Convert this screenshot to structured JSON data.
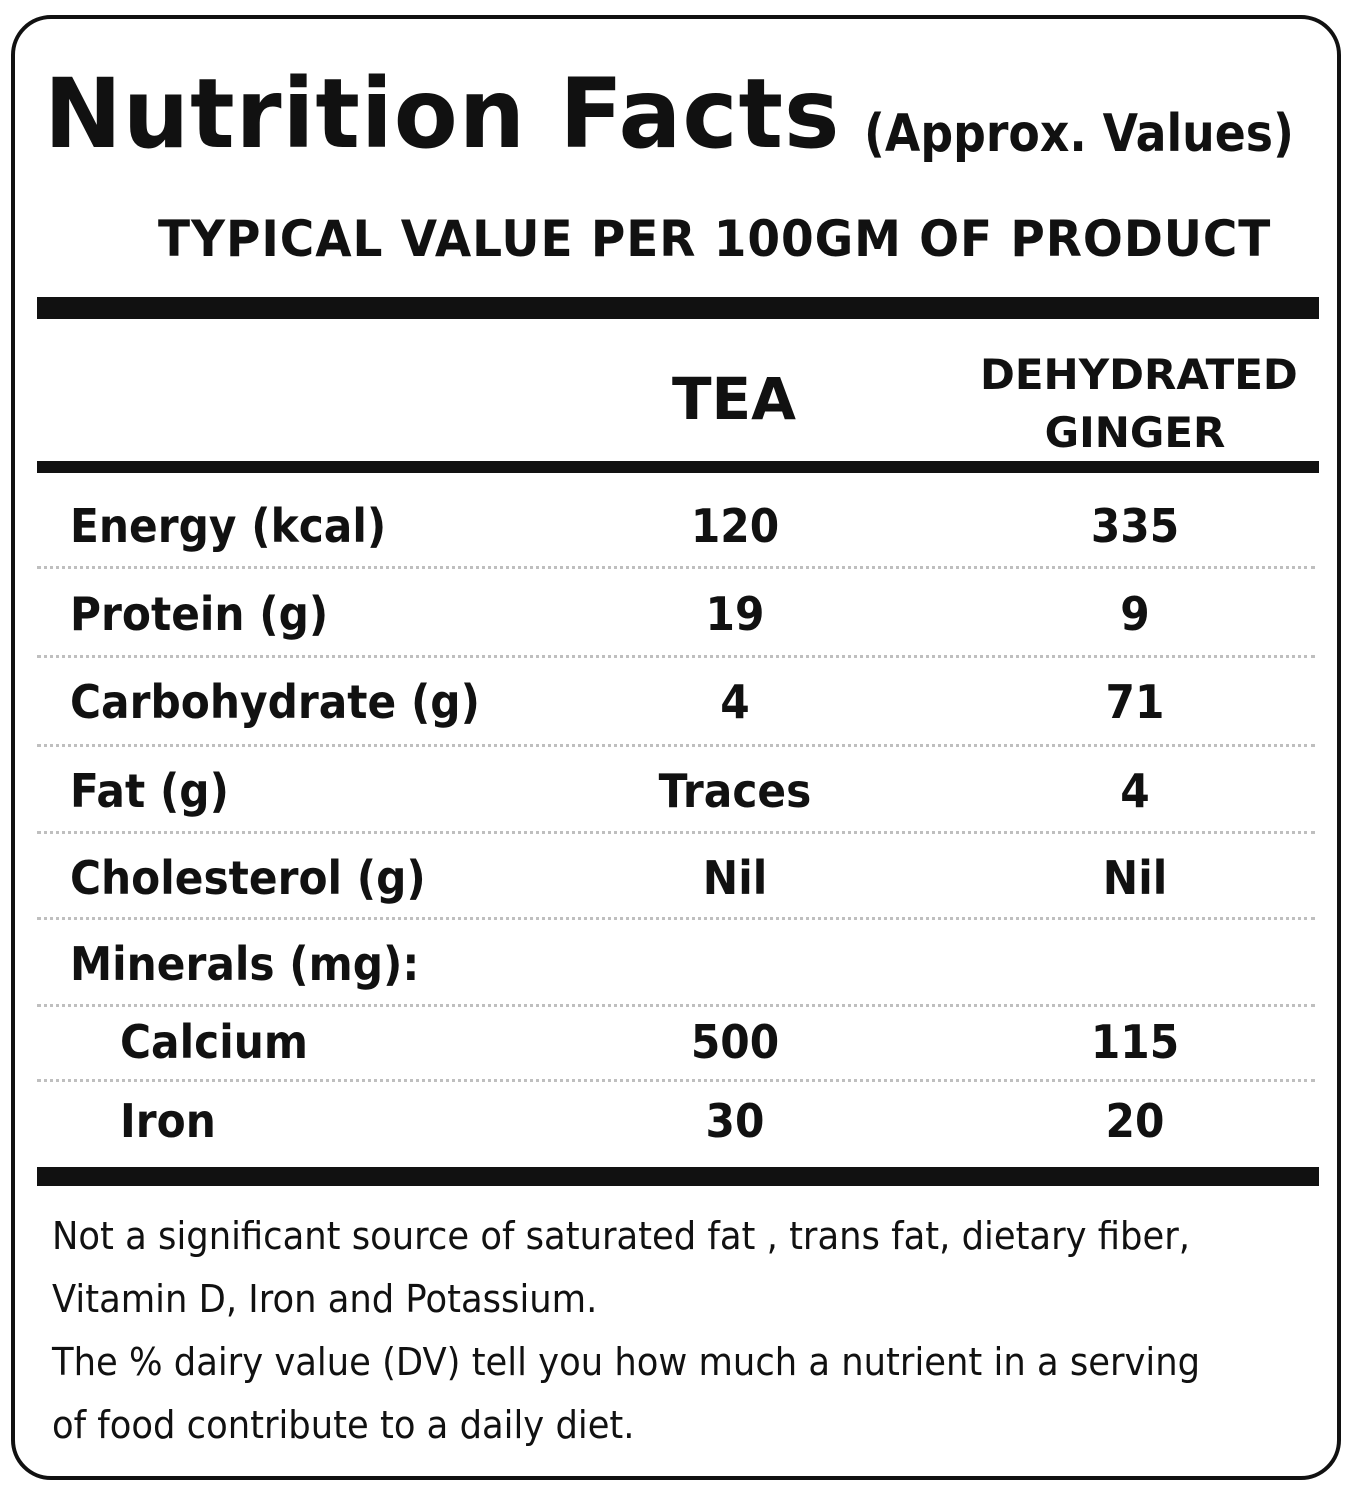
{
  "header": {
    "title": "Nutrition Facts",
    "qualifier": "(Approx. Values)",
    "subtitle": "TYPICAL VALUE PER 100GM OF PRODUCT"
  },
  "columns": {
    "col1": "TEA",
    "col2_line1": "DEHYDRATED",
    "col2_line2": "GINGER"
  },
  "rows": [
    {
      "name": "Energy (kcal)",
      "tea": "120",
      "ginger": "335"
    },
    {
      "name": "Protein (g)",
      "tea": "19",
      "ginger": "9"
    },
    {
      "name": "Carbohydrate (g)",
      "tea": "4",
      "ginger": "71"
    },
    {
      "name": "Fat (g)",
      "tea": "Traces",
      "ginger": "4"
    },
    {
      "name": "Cholesterol (g)",
      "tea": "Nil",
      "ginger": "Nil"
    },
    {
      "name": "Minerals (mg):",
      "tea": "",
      "ginger": ""
    },
    {
      "name": "Calcium",
      "tea": "500",
      "ginger": "115"
    },
    {
      "name": "Iron",
      "tea": "30",
      "ginger": "20"
    }
  ],
  "footnote": {
    "line1": "Not a significant source of saturated fat , trans fat, dietary fiber,",
    "line2": "Vitamin D, Iron and Potassium.",
    "line3": "The % dairy value (DV) tell you how much a nutrient in a serving",
    "line4": "of food contribute to a daily diet."
  }
}
